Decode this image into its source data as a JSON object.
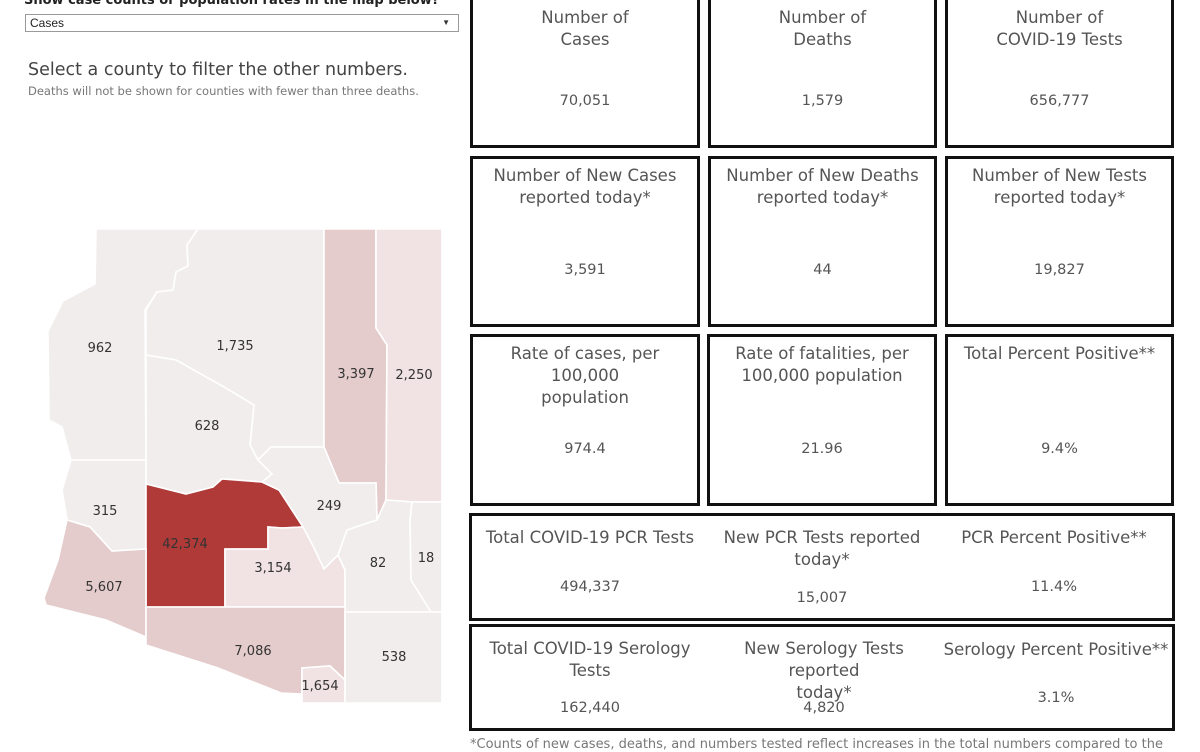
{
  "filter": {
    "label": "Show case counts or population rates in the map below?",
    "selected": "Cases"
  },
  "instructions": {
    "title": "Select a county to filter the other numbers.",
    "subtitle": "Deaths will not be shown for counties with fewer than three deaths."
  },
  "colors": {
    "dark": "#b03a38",
    "medium": "#e5cccc",
    "light": "#f1e3e3",
    "lightest": "#f1eded"
  },
  "map": {
    "counties": [
      {
        "name": "mohave",
        "value": "962",
        "shade": "lightest"
      },
      {
        "name": "coconino",
        "value": "1,735",
        "shade": "lightest"
      },
      {
        "name": "navajo",
        "value": "3,397",
        "shade": "medium"
      },
      {
        "name": "apache",
        "value": "2,250",
        "shade": "light"
      },
      {
        "name": "yavapai",
        "value": "628",
        "shade": "lightest"
      },
      {
        "name": "la-paz",
        "value": "315",
        "shade": "lightest"
      },
      {
        "name": "maricopa",
        "value": "42,374",
        "shade": "dark"
      },
      {
        "name": "gila",
        "value": "249",
        "shade": "lightest"
      },
      {
        "name": "pinal",
        "value": "3,154",
        "shade": "light"
      },
      {
        "name": "yuma",
        "value": "5,607",
        "shade": "medium"
      },
      {
        "name": "graham",
        "value": "82",
        "shade": "lightest"
      },
      {
        "name": "greenlee",
        "value": "18",
        "shade": "lightest"
      },
      {
        "name": "pima",
        "value": "7,086",
        "shade": "medium"
      },
      {
        "name": "santa-cruz",
        "value": "1,654",
        "shade": "light"
      },
      {
        "name": "cochise",
        "value": "538",
        "shade": "lightest"
      }
    ]
  },
  "cards": [
    {
      "title": "Number of\nCases",
      "value": "70,051"
    },
    {
      "title": "Number of\nDeaths",
      "value": "1,579"
    },
    {
      "title": "Number of\nCOVID-19 Tests",
      "value": "656,777"
    },
    {
      "title": "Number of New Cases\nreported today*",
      "value": "3,591"
    },
    {
      "title": "Number of New Deaths\nreported today*",
      "value": "44"
    },
    {
      "title": "Number of New Tests\nreported today*",
      "value": "19,827"
    },
    {
      "title": "Rate of cases, per 100,000\npopulation",
      "value": "974.4"
    },
    {
      "title": "Rate of fatalities, per\n100,000 population",
      "value": "21.96"
    },
    {
      "title": "Total Percent Positive**",
      "value": "9.4%"
    }
  ],
  "pcr": [
    {
      "title": "Total COVID-19 PCR Tests",
      "value": "494,337"
    },
    {
      "title": "New PCR Tests reported\ntoday*",
      "value": "15,007"
    },
    {
      "title": "PCR Percent Positive**",
      "value": "11.4%"
    }
  ],
  "serology": [
    {
      "title": "Total COVID-19 Serology\nTests",
      "value": "162,440"
    },
    {
      "title": "New Serology Tests reported\ntoday*",
      "value": "4,820"
    },
    {
      "title": "Serology Percent Positive**",
      "value": "3.1%"
    }
  ],
  "footnote": "*Counts of new cases, deaths, and numbers tested reflect increases in the total numbers compared to the"
}
